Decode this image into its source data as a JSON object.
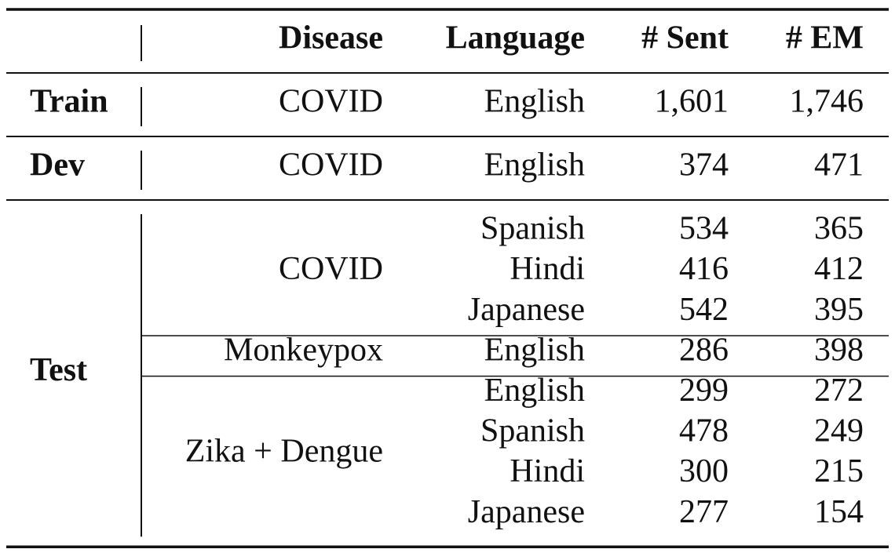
{
  "table": {
    "header": [
      "Disease",
      "Language",
      "# Sent",
      "# EM"
    ],
    "groups": [
      {
        "split": "Train",
        "subgroups": [
          {
            "disease": "COVID",
            "rows": [
              {
                "language": "English",
                "sent": "1,601",
                "em": "1,746"
              }
            ]
          }
        ]
      },
      {
        "split": "Dev",
        "subgroups": [
          {
            "disease": "COVID",
            "rows": [
              {
                "language": "English",
                "sent": "374",
                "em": "471"
              }
            ]
          }
        ]
      },
      {
        "split": "Test",
        "subgroups": [
          {
            "disease": "COVID",
            "rows": [
              {
                "language": "Spanish",
                "sent": "534",
                "em": "365"
              },
              {
                "language": "Hindi",
                "sent": "416",
                "em": "412"
              },
              {
                "language": "Japanese",
                "sent": "542",
                "em": "395"
              }
            ]
          },
          {
            "disease": "Monkeypox",
            "rows": [
              {
                "language": "English",
                "sent": "286",
                "em": "398"
              }
            ]
          },
          {
            "disease": "Zika + Dengue",
            "rows": [
              {
                "language": "English",
                "sent": "299",
                "em": "272"
              },
              {
                "language": "Spanish",
                "sent": "478",
                "em": "249"
              },
              {
                "language": "Hindi",
                "sent": "300",
                "em": "215"
              },
              {
                "language": "Japanese",
                "sent": "277",
                "em": "154"
              }
            ]
          }
        ]
      }
    ]
  }
}
